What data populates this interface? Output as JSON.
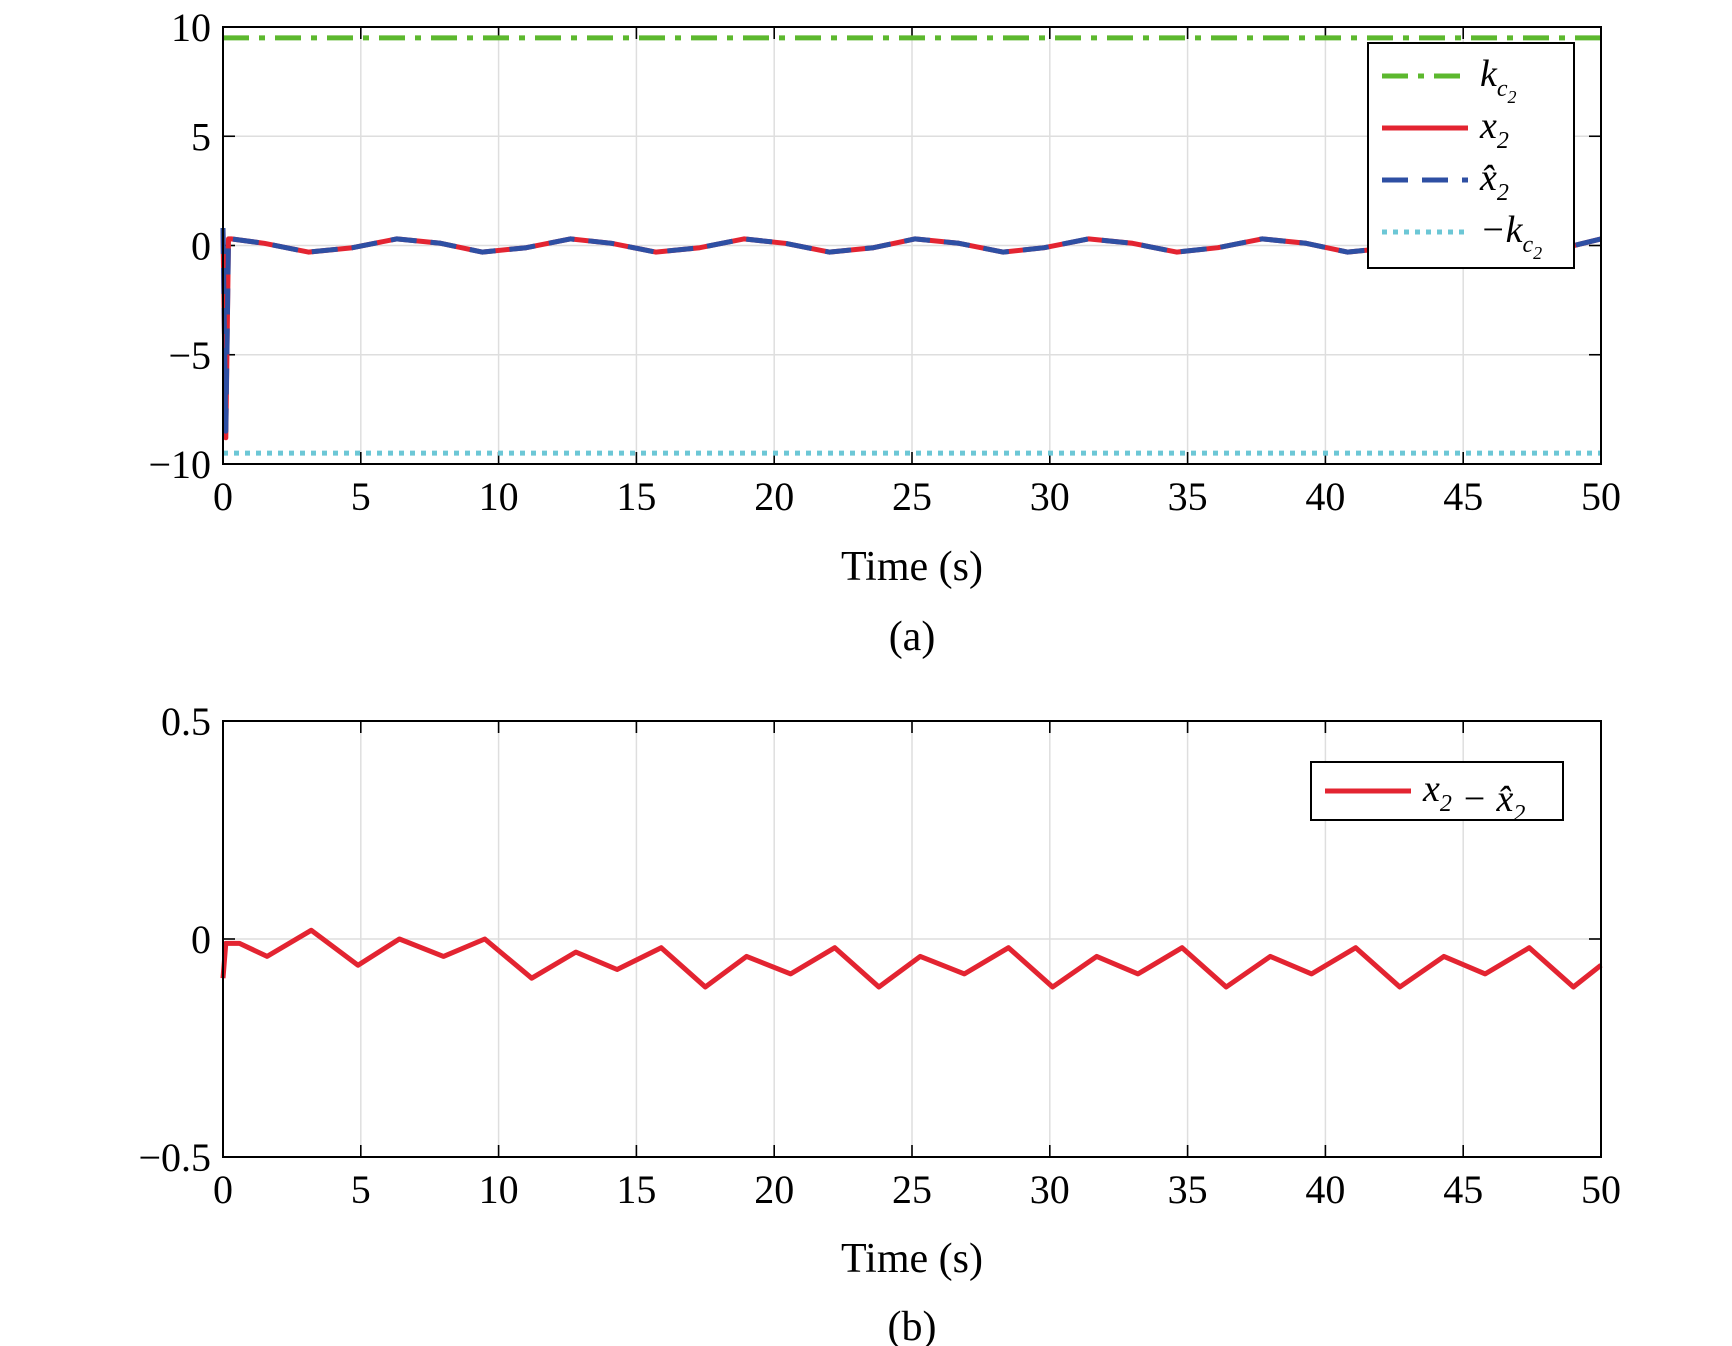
{
  "chart_data": [
    {
      "type": "line",
      "caption": "(a)",
      "xlabel": "Time (s)",
      "ylabel": "",
      "xlim": [
        0,
        50
      ],
      "ylim": [
        -10,
        10
      ],
      "xticks": [
        "0",
        "5",
        "10",
        "15",
        "20",
        "25",
        "30",
        "35",
        "40",
        "45",
        "50"
      ],
      "yticks": [
        "10",
        "5",
        "0",
        "−10"
      ],
      "ytick_values": [
        10,
        5,
        0,
        -10
      ],
      "ytick_extra": {
        "label": "−5",
        "value": -5
      },
      "grid": true,
      "legend_position": "top-right",
      "series": [
        {
          "name": "k",
          "name_sub": "c",
          "name_subsub": "2",
          "color": "#5cb82e",
          "style": "dash-dot",
          "x": [
            0,
            50
          ],
          "y": [
            9.5,
            9.5
          ]
        },
        {
          "name": "x",
          "name_sub": "2",
          "color": "#e32431",
          "style": "solid",
          "x": [
            0,
            0.1,
            0.2,
            0.3,
            1.5,
            3.1,
            4.7,
            6.3,
            7.9,
            9.4,
            11.0,
            12.6,
            14.1,
            15.7,
            17.3,
            18.9,
            20.4,
            22.0,
            23.6,
            25.1,
            26.7,
            28.3,
            29.8,
            31.4,
            33.0,
            34.6,
            36.1,
            37.7,
            39.3,
            40.8,
            42.4,
            44.0,
            45.5,
            47.1,
            48.7,
            50.0
          ],
          "y": [
            0.8,
            -8.8,
            0.3,
            0.3,
            0.1,
            -0.3,
            -0.1,
            0.3,
            0.1,
            -0.3,
            -0.1,
            0.3,
            0.1,
            -0.3,
            -0.1,
            0.3,
            0.1,
            -0.3,
            -0.1,
            0.3,
            0.1,
            -0.3,
            -0.1,
            0.3,
            0.1,
            -0.3,
            -0.1,
            0.3,
            0.1,
            -0.3,
            -0.1,
            0.3,
            0.1,
            -0.3,
            -0.1,
            0.3
          ]
        },
        {
          "name": "x̂",
          "name_sub": "2",
          "color": "#2e4fa3",
          "style": "dashed",
          "x": [
            0,
            0.1,
            0.2,
            0.3,
            1.5,
            3.1,
            4.7,
            6.3,
            7.9,
            9.4,
            11.0,
            12.6,
            14.1,
            15.7,
            17.3,
            18.9,
            20.4,
            22.0,
            23.6,
            25.1,
            26.7,
            28.3,
            29.8,
            31.4,
            33.0,
            34.6,
            36.1,
            37.7,
            39.3,
            40.8,
            42.4,
            44.0,
            45.5,
            47.1,
            48.7,
            50.0
          ],
          "y": [
            0.8,
            -8.5,
            0.3,
            0.3,
            0.1,
            -0.3,
            -0.1,
            0.3,
            0.1,
            -0.3,
            -0.1,
            0.3,
            0.1,
            -0.3,
            -0.1,
            0.3,
            0.1,
            -0.3,
            -0.1,
            0.3,
            0.1,
            -0.3,
            -0.1,
            0.3,
            0.1,
            -0.3,
            -0.1,
            0.3,
            0.1,
            -0.3,
            -0.1,
            0.3,
            0.1,
            -0.3,
            -0.1,
            0.3
          ]
        },
        {
          "name": "−k",
          "name_sub": "c",
          "name_subsub": "2",
          "color": "#6cc7d6",
          "style": "dotted",
          "x": [
            0,
            50
          ],
          "y": [
            -9.5,
            -9.5
          ]
        }
      ]
    },
    {
      "type": "line",
      "caption": "(b)",
      "xlabel": "Time (s)",
      "ylabel": "",
      "xlim": [
        0,
        50
      ],
      "ylim": [
        -0.5,
        0.5
      ],
      "xticks": [
        "0",
        "5",
        "10",
        "15",
        "20",
        "25",
        "30",
        "35",
        "40",
        "45",
        "50"
      ],
      "yticks": [
        "0.5",
        "0",
        "−0.5"
      ],
      "ytick_values": [
        0.5,
        0,
        -0.5
      ],
      "grid": true,
      "legend_position": "top-right",
      "series": [
        {
          "name": "x",
          "name_sub": "2",
          "name_rest": " − x̂",
          "name_rest_sub": "2",
          "color": "#e32431",
          "style": "solid",
          "x": [
            0,
            0.1,
            0.3,
            0.6,
            1.6,
            3.2,
            4.9,
            6.4,
            8.0,
            9.5,
            11.2,
            12.8,
            14.3,
            15.9,
            17.5,
            19.0,
            20.6,
            22.2,
            23.8,
            25.3,
            26.9,
            28.5,
            30.1,
            31.7,
            33.2,
            34.8,
            36.4,
            38.0,
            39.5,
            41.1,
            42.7,
            44.3,
            45.8,
            47.4,
            49.0,
            50.0
          ],
          "y": [
            -0.09,
            -0.01,
            -0.01,
            -0.01,
            -0.04,
            0.02,
            -0.06,
            0.0,
            -0.04,
            0.0,
            -0.09,
            -0.03,
            -0.07,
            -0.02,
            -0.11,
            -0.04,
            -0.08,
            -0.02,
            -0.11,
            -0.04,
            -0.08,
            -0.02,
            -0.11,
            -0.04,
            -0.08,
            -0.02,
            -0.11,
            -0.04,
            -0.08,
            -0.02,
            -0.11,
            -0.04,
            -0.08,
            -0.02,
            -0.11,
            -0.06
          ]
        }
      ]
    }
  ]
}
